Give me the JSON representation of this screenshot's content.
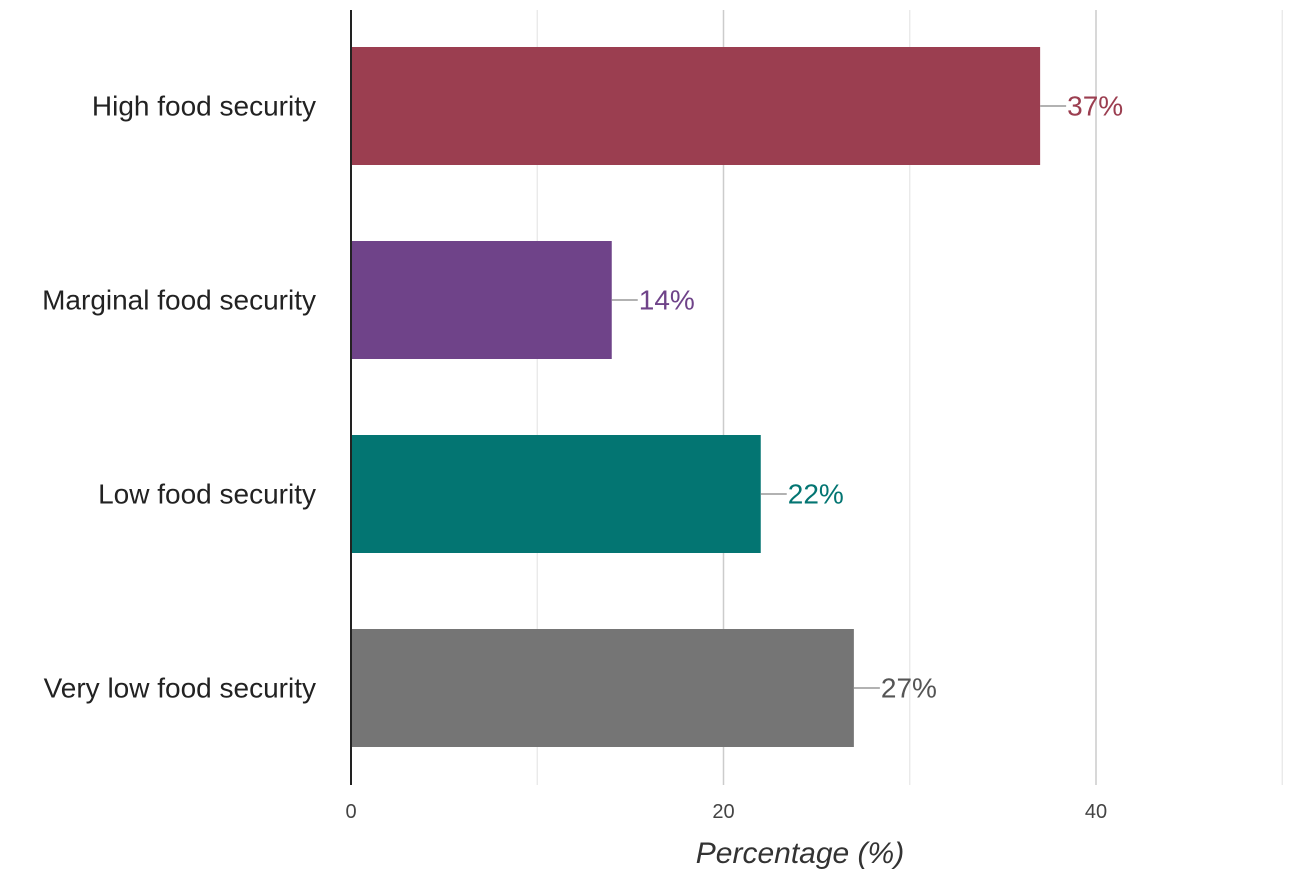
{
  "chart_data": {
    "type": "bar",
    "orientation": "horizontal",
    "categories": [
      "High food security",
      "Marginal food security",
      "Low food security",
      "Very low food security"
    ],
    "values": [
      37,
      14,
      22,
      27
    ],
    "data_labels": [
      "37%",
      "14%",
      "22%",
      "27%"
    ],
    "colors": [
      "#9b3e50",
      "#6f4389",
      "#037572",
      "#757575"
    ],
    "label_colors": [
      "#9b3e50",
      "#6f4389",
      "#037572",
      "#555555"
    ],
    "title": "",
    "xlabel": "Percentage (%)",
    "ylabel": "",
    "xlim": [
      0,
      50
    ],
    "xticks": [
      0,
      20,
      40
    ],
    "xtick_labels": [
      "0",
      "20",
      "40"
    ],
    "minor_gridlines": [
      10,
      30,
      50
    ],
    "grid": true,
    "legend": "none"
  }
}
